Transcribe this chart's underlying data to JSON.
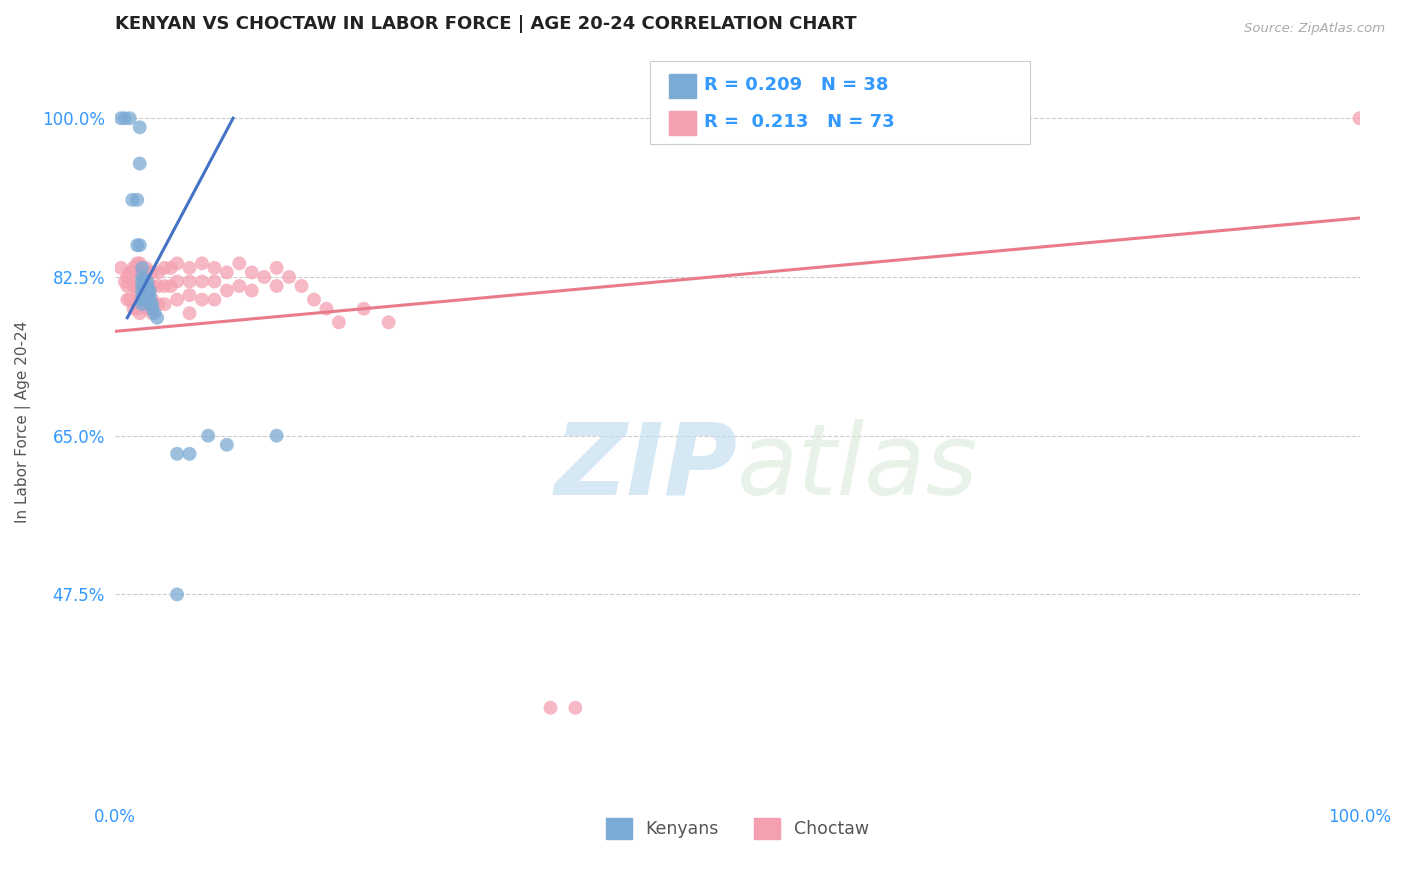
{
  "title": "KENYAN VS CHOCTAW IN LABOR FORCE | AGE 20-24 CORRELATION CHART",
  "source_text": "Source: ZipAtlas.com",
  "ylabel": "In Labor Force | Age 20-24",
  "xlim": [
    0.0,
    1.0
  ],
  "ylim": [
    0.25,
    1.08
  ],
  "ytick_labels": [
    "47.5%",
    "65.0%",
    "82.5%",
    "100.0%"
  ],
  "ytick_values": [
    0.475,
    0.65,
    0.825,
    1.0
  ],
  "xtick_labels": [
    "0.0%",
    "100.0%"
  ],
  "xtick_values": [
    0.0,
    1.0
  ],
  "watermark_zip": "ZIP",
  "watermark_atlas": "atlas",
  "kenyan_color": "#7baad4",
  "choctaw_color": "#f4a0b0",
  "kenyan_line_color": "#4472c4",
  "choctaw_line_color": "#e87a8a",
  "scatter_alpha": 0.75,
  "scatter_size": 100,
  "grid_color": "#cccccc",
  "background_color": "#ffffff",
  "kenyan_R": "0.209",
  "kenyan_N": "38",
  "choctaw_R": "0.213",
  "choctaw_N": "73",
  "kenyan_scatter_x": [
    0.005,
    0.008,
    0.012,
    0.014,
    0.018,
    0.018,
    0.02,
    0.02,
    0.02,
    0.022,
    0.022,
    0.022,
    0.022,
    0.022,
    0.022,
    0.022,
    0.022,
    0.024,
    0.024,
    0.024,
    0.024,
    0.024,
    0.026,
    0.026,
    0.026,
    0.028,
    0.028,
    0.028,
    0.03,
    0.03,
    0.032,
    0.034,
    0.05,
    0.05,
    0.06,
    0.075,
    0.09,
    0.13
  ],
  "kenyan_scatter_y": [
    1.0,
    1.0,
    1.0,
    0.91,
    0.91,
    0.86,
    0.99,
    0.95,
    0.86,
    0.835,
    0.825,
    0.82,
    0.815,
    0.81,
    0.805,
    0.8,
    0.795,
    0.82,
    0.815,
    0.81,
    0.805,
    0.8,
    0.82,
    0.815,
    0.81,
    0.81,
    0.805,
    0.8,
    0.795,
    0.79,
    0.785,
    0.78,
    0.63,
    0.475,
    0.63,
    0.65,
    0.64,
    0.65
  ],
  "choctaw_scatter_x": [
    0.005,
    0.008,
    0.01,
    0.01,
    0.01,
    0.012,
    0.012,
    0.015,
    0.015,
    0.015,
    0.018,
    0.018,
    0.018,
    0.018,
    0.02,
    0.02,
    0.02,
    0.02,
    0.02,
    0.022,
    0.022,
    0.022,
    0.025,
    0.025,
    0.025,
    0.025,
    0.028,
    0.028,
    0.028,
    0.03,
    0.03,
    0.03,
    0.03,
    0.035,
    0.035,
    0.035,
    0.04,
    0.04,
    0.04,
    0.045,
    0.045,
    0.05,
    0.05,
    0.05,
    0.06,
    0.06,
    0.06,
    0.06,
    0.07,
    0.07,
    0.07,
    0.08,
    0.08,
    0.08,
    0.09,
    0.09,
    0.1,
    0.1,
    0.11,
    0.11,
    0.12,
    0.13,
    0.13,
    0.14,
    0.15,
    0.16,
    0.17,
    0.18,
    0.2,
    0.22,
    0.35,
    0.37,
    1.0
  ],
  "choctaw_scatter_y": [
    0.835,
    0.82,
    0.825,
    0.815,
    0.8,
    0.83,
    0.8,
    0.835,
    0.815,
    0.79,
    0.84,
    0.825,
    0.81,
    0.79,
    0.84,
    0.83,
    0.815,
    0.8,
    0.785,
    0.82,
    0.81,
    0.795,
    0.835,
    0.82,
    0.805,
    0.79,
    0.83,
    0.815,
    0.79,
    0.83,
    0.815,
    0.8,
    0.785,
    0.83,
    0.815,
    0.795,
    0.835,
    0.815,
    0.795,
    0.835,
    0.815,
    0.84,
    0.82,
    0.8,
    0.835,
    0.82,
    0.805,
    0.785,
    0.84,
    0.82,
    0.8,
    0.835,
    0.82,
    0.8,
    0.83,
    0.81,
    0.84,
    0.815,
    0.83,
    0.81,
    0.825,
    0.835,
    0.815,
    0.825,
    0.815,
    0.8,
    0.79,
    0.775,
    0.79,
    0.775,
    0.35,
    0.35,
    1.0
  ],
  "kenyan_line_x": [
    0.01,
    0.095
  ],
  "kenyan_line_y": [
    0.78,
    1.0
  ],
  "choctaw_line_x": [
    0.0,
    1.0
  ],
  "choctaw_line_y": [
    0.765,
    0.89
  ]
}
